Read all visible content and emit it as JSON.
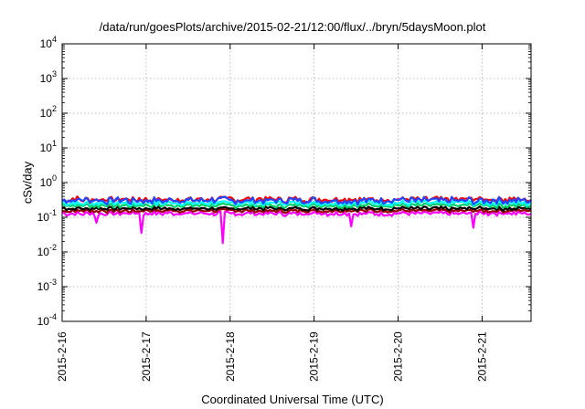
{
  "chart_data": {
    "type": "line",
    "title": "/data/run/goesPlots/archive/2015-02-21/12:00/flux/../bryn/5daysMoon.plot",
    "xlabel": "Coordinated Universal Time (UTC)",
    "ylabel": "cSv/day",
    "y_scale": "log",
    "ylim": [
      0.0001,
      10000
    ],
    "y_ticks": [
      {
        "value": 0.0001,
        "base": "10",
        "exp": "-4"
      },
      {
        "value": 0.001,
        "base": "10",
        "exp": "-3"
      },
      {
        "value": 0.01,
        "base": "10",
        "exp": "-2"
      },
      {
        "value": 0.1,
        "base": "10",
        "exp": "-1"
      },
      {
        "value": 1,
        "base": "10",
        "exp": "0"
      },
      {
        "value": 10,
        "base": "10",
        "exp": "1"
      },
      {
        "value": 100,
        "base": "10",
        "exp": "2"
      },
      {
        "value": 1000,
        "base": "10",
        "exp": "3"
      },
      {
        "value": 10000,
        "base": "10",
        "exp": "4"
      }
    ],
    "xlim": [
      "2015-02-16 00:00",
      "2015-02-21 14:00"
    ],
    "x_ticks": [
      {
        "value": "2015-02-16",
        "label": "2015-2-16"
      },
      {
        "value": "2015-02-17",
        "label": "2015-2-17"
      },
      {
        "value": "2015-02-18",
        "label": "2015-2-18"
      },
      {
        "value": "2015-02-19",
        "label": "2015-2-19"
      },
      {
        "value": "2015-02-20",
        "label": "2015-2-20"
      },
      {
        "value": "2015-02-21",
        "label": "2015-2-21"
      }
    ],
    "grid": true,
    "legend": "none",
    "series": [
      {
        "color": "#ff00ff",
        "base": 0.13,
        "noise": 0.12,
        "spikes": [
          {
            "x": "2015-02-16 09:40",
            "value": 0.07
          },
          {
            "x": "2015-02-16 22:30",
            "value": 0.035
          },
          {
            "x": "2015-02-17 21:40",
            "value": 0.018
          },
          {
            "x": "2015-02-19 10:30",
            "value": 0.055
          },
          {
            "x": "2015-02-20 21:40",
            "value": 0.05
          }
        ]
      },
      {
        "color": "#990000",
        "base": 0.155,
        "noise": 0.1,
        "spikes": []
      },
      {
        "color": "#000000",
        "base": 0.18,
        "noise": 0.1,
        "spikes": []
      },
      {
        "color": "#00cc66",
        "base": 0.22,
        "noise": 0.12,
        "spikes": []
      },
      {
        "color": "#00ffff",
        "base": 0.26,
        "noise": 0.14,
        "spikes": []
      },
      {
        "color": "#ff0000",
        "base": 0.33,
        "noise": 0.16,
        "spikes": []
      },
      {
        "color": "#2244ff",
        "base": 0.31,
        "noise": 0.18,
        "spikes": []
      }
    ]
  }
}
